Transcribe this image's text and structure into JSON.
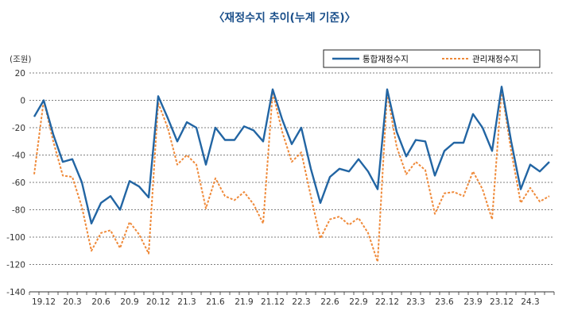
{
  "chart_data": {
    "type": "line",
    "title": "〈재정수지 추이(누계 기준)〉",
    "unit_label": "(조원)",
    "ylim": [
      -140,
      20
    ],
    "y_ticks": [
      20,
      0,
      -20,
      -40,
      -60,
      -80,
      -100,
      -120,
      -140
    ],
    "grid": "horizontal dashed",
    "legend_position": "top-right",
    "x_tick_labels": [
      "19.12",
      "20.3",
      "20.6",
      "20.9",
      "20.12",
      "21.3",
      "21.6",
      "21.9",
      "21.12",
      "22.3",
      "22.6",
      "22.9",
      "22.12",
      "23.3",
      "23.6",
      "23.9",
      "23.12",
      "24.3"
    ],
    "categories": [
      "19.11",
      "19.12",
      "20.1",
      "20.2",
      "20.3",
      "20.4",
      "20.5",
      "20.6",
      "20.7",
      "20.8",
      "20.9",
      "20.10",
      "20.11",
      "20.12",
      "21.1",
      "21.2",
      "21.3",
      "21.4",
      "21.5",
      "21.6",
      "21.7",
      "21.8",
      "21.9",
      "21.10",
      "21.11",
      "21.12",
      "22.1",
      "22.2",
      "22.3",
      "22.4",
      "22.5",
      "22.6",
      "22.7",
      "22.8",
      "22.9",
      "22.10",
      "22.11",
      "22.12",
      "23.1",
      "23.2",
      "23.3",
      "23.4",
      "23.5",
      "23.6",
      "23.7",
      "23.8",
      "23.9",
      "23.10",
      "23.11",
      "23.12",
      "24.1",
      "24.2",
      "24.3",
      "24.4",
      "24.5"
    ],
    "series": [
      {
        "name": "통합재정수지",
        "color": "#2265a3",
        "style": "solid",
        "values": [
          -12,
          0,
          -25,
          -45,
          -43,
          -60,
          -90,
          -75,
          -70,
          -80,
          -59,
          -63,
          -71,
          3,
          -13,
          -30,
          -16,
          -20,
          -47,
          -20,
          -29,
          -29,
          -19,
          -22,
          -30,
          8,
          -14,
          -32,
          -20,
          -50,
          -75,
          -56,
          -50,
          -52,
          -43,
          -52,
          -65,
          8,
          -23,
          -41,
          -29,
          -30,
          -55,
          -37,
          -31,
          -31,
          -10,
          -20,
          -37,
          10,
          -30,
          -65,
          -47,
          -52,
          -45
        ]
      },
      {
        "name": "관리재정수지",
        "color": "#ef8a3a",
        "style": "dashed",
        "values": [
          -54,
          0,
          -30,
          -55,
          -56,
          -78,
          -110,
          -97,
          -95,
          -108,
          -89,
          -98,
          -112,
          -2,
          -20,
          -47,
          -40,
          -47,
          -79,
          -57,
          -70,
          -73,
          -67,
          -76,
          -90,
          6,
          -23,
          -45,
          -38,
          -70,
          -101,
          -87,
          -85,
          -91,
          -86,
          -97,
          -118,
          6,
          -34,
          -54,
          -45,
          -51,
          -83,
          -68,
          -67,
          -70,
          -52,
          -65,
          -87,
          8,
          -37,
          -75,
          -64,
          -74,
          -70
        ]
      }
    ]
  }
}
